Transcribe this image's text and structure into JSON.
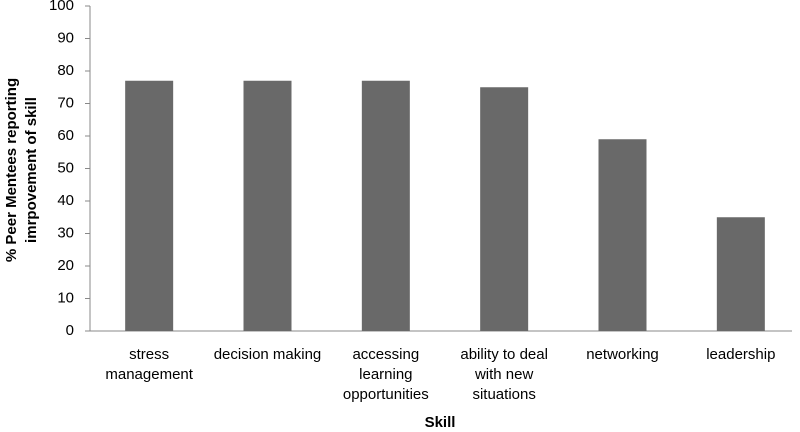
{
  "chart_data": {
    "type": "bar",
    "y_label": [
      "% Peer Mentees reporting",
      "imrpovement of skill"
    ],
    "x_label": "Skill",
    "categories": [
      "stress management",
      "decision making",
      "accessing learning opportunities",
      "ability to deal with new situations",
      "networking",
      "leadership"
    ],
    "values": [
      77,
      77,
      77,
      75,
      59,
      35
    ],
    "color": "#696969",
    "ylim": [
      0,
      100
    ],
    "yticks": [
      0,
      10,
      20,
      30,
      40,
      50,
      60,
      70,
      80,
      90,
      100
    ],
    "grid": false
  }
}
